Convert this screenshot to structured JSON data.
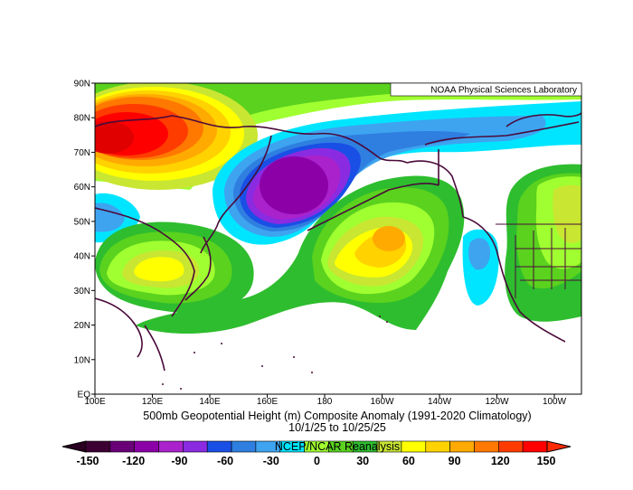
{
  "credit": "NOAA Physical Sciences Laboratory",
  "title_line1": "500mb Geopotential Height (m) Composite Anomaly (1991-2020 Climatology)",
  "title_line2": "10/1/25  to 10/25/25",
  "source": "NCEP/NCAR Reanalysis",
  "lat_labels": [
    "90N",
    "80N",
    "70N",
    "60N",
    "50N",
    "40N",
    "30N",
    "20N",
    "10N",
    "EQ"
  ],
  "lon_labels": [
    "100E",
    "120E",
    "140E",
    "160E",
    "180",
    "160W",
    "140W",
    "120W",
    "100W"
  ],
  "colorbar": {
    "tick_labels": [
      "-150",
      "-120",
      "-90",
      "-60",
      "-30",
      "0",
      "30",
      "60",
      "90",
      "120",
      "150"
    ],
    "colors": {
      "neg": [
        "#3d0033",
        "#6a0078",
        "#8c00a8",
        "#aa22cc",
        "#8a2be2",
        "#1a4fe6",
        "#2f7fe0",
        "#3ea4f0",
        "#00e5ff"
      ],
      "pos": [
        "#a0ff30",
        "#5ad21e",
        "#2ebd2e",
        "#c8e632",
        "#ffff00",
        "#ffd200",
        "#ffaa00",
        "#ff7800",
        "#ff3c00",
        "#ff0000"
      ]
    },
    "value_range": [
      -150,
      150
    ]
  },
  "map": {
    "region": "North Pacific, 100E-100W, EQ-90N",
    "land_outline_color": "#4a0a3a"
  }
}
